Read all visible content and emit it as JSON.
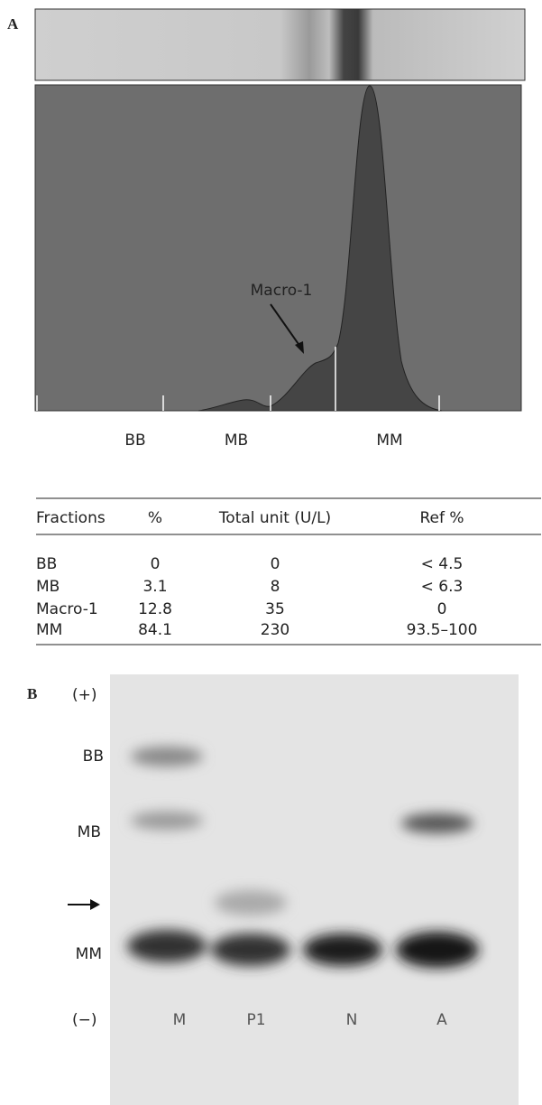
{
  "panel_a": {
    "label": "A",
    "annotation": "Macro-1",
    "fraction_labels": [
      "BB",
      "MB",
      "MM"
    ]
  },
  "table": {
    "header": [
      "Fractions",
      "%",
      "Total unit (U/L)",
      "Ref %"
    ],
    "rows": [
      [
        "BB",
        "0",
        "0",
        "< 4.5"
      ],
      [
        "MB",
        "3.1",
        "8",
        "< 6.3"
      ],
      [
        "Macro-1",
        "12.8",
        "35",
        "0"
      ],
      [
        "MM",
        "84.1",
        "230",
        "93.5–100"
      ]
    ]
  },
  "panel_b": {
    "label": "B",
    "pole_labels": [
      "(+)",
      "(−)"
    ],
    "band_labels": [
      "BB",
      "MB",
      "MM"
    ],
    "lanes": [
      "M",
      "P1",
      "N",
      "A"
    ]
  }
}
